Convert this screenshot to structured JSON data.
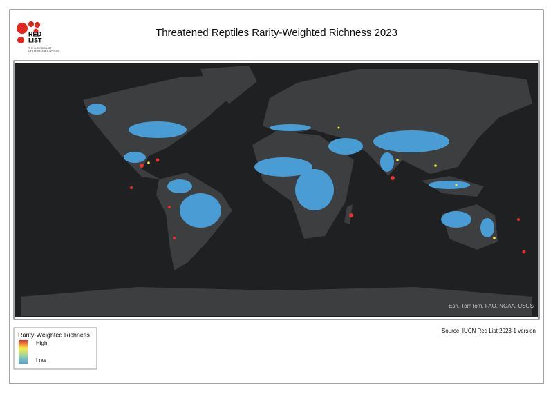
{
  "logo": {
    "line1": "RED",
    "line2": "LIST",
    "tagline1": "THE IUCN RED LIST",
    "tagline2": "OF THREATENED SPECIES"
  },
  "title": "Threatened Reptiles Rarity-Weighted Richness 2023",
  "map": {
    "attribution": "Esri, TomTom, FAO, NOAA, USGS"
  },
  "legend": {
    "title": "Rarity-Weighted Richness",
    "high": "High",
    "low": "Low"
  },
  "source": "Source: IUCN Red List 2023-1 version"
}
